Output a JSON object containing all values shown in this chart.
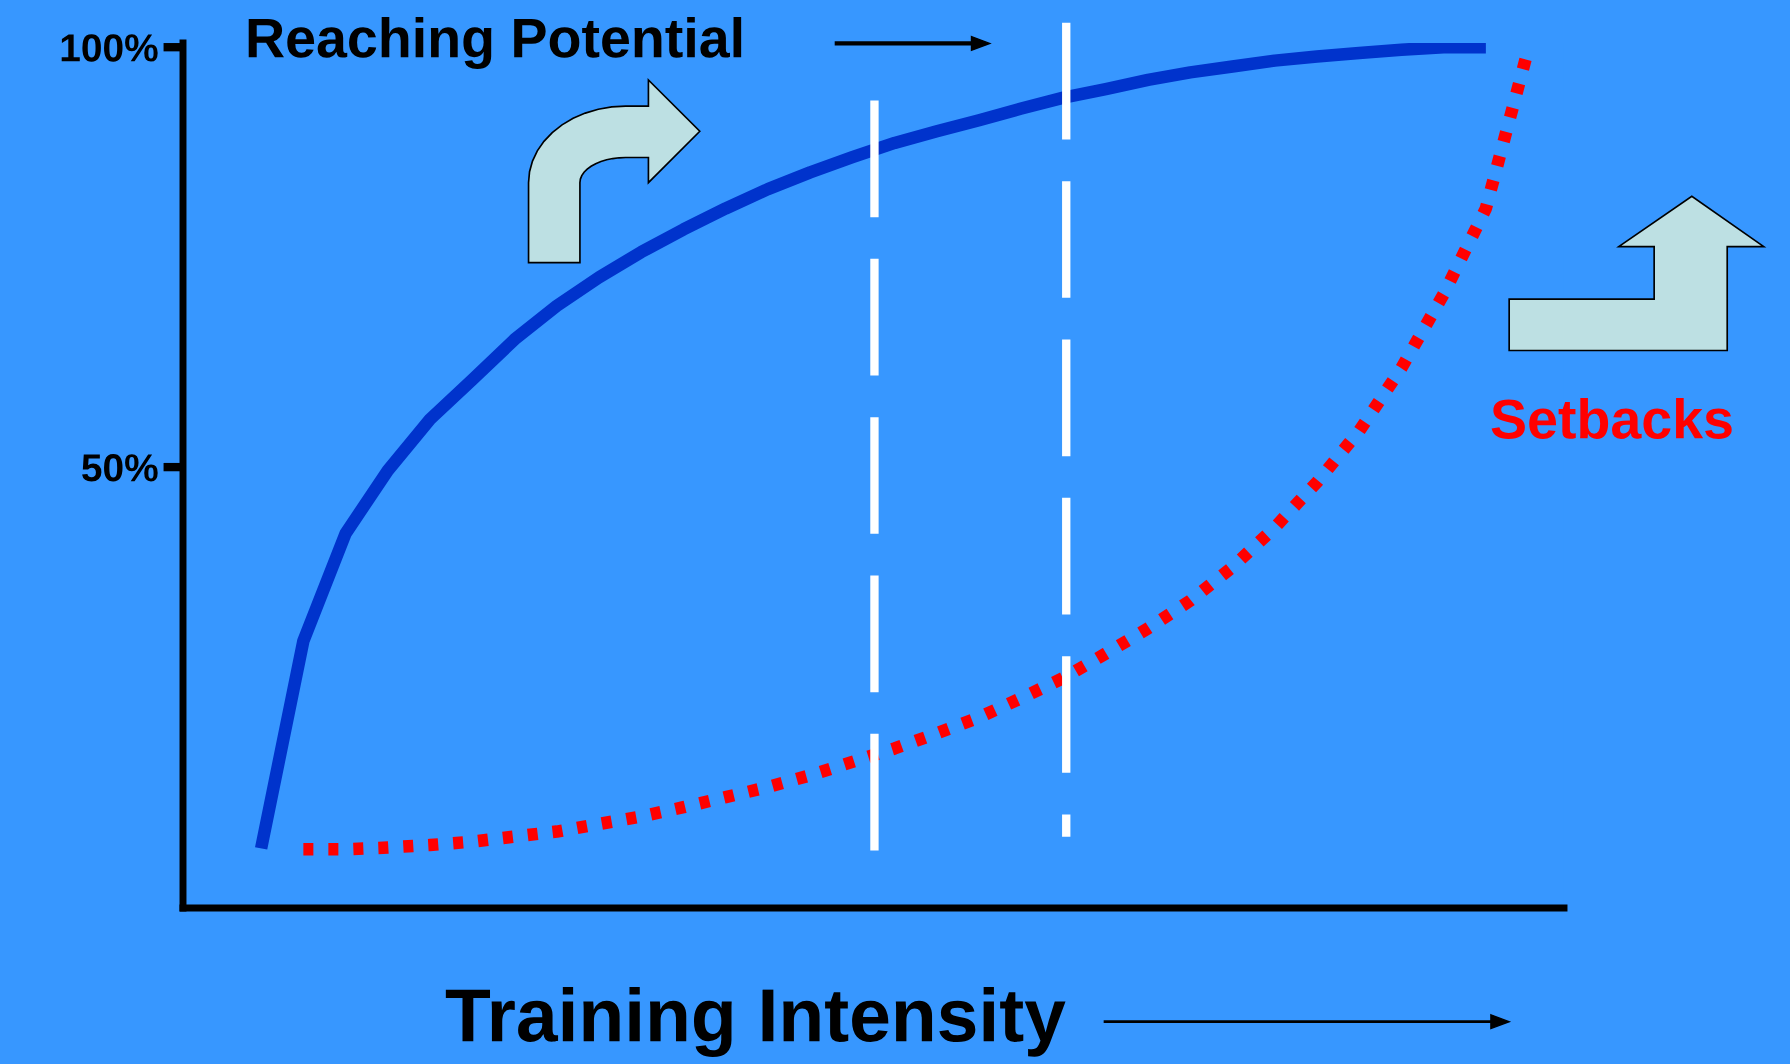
{
  "chart_data": {
    "type": "line",
    "xlabel": "Training Intensity",
    "categories": [
      null,
      null,
      null,
      null,
      null,
      null,
      null,
      null,
      null,
      null,
      null,
      null,
      null,
      null,
      null,
      null,
      null,
      null,
      null,
      null,
      null,
      null,
      null,
      null,
      null,
      null,
      null,
      null,
      null,
      null,
      null
    ],
    "series": [
      {
        "name": "Reaching Potential",
        "color": "#0033cc",
        "line_style": "solid",
        "values": [
          4.6,
          29.3,
          42.1,
          49.6,
          55.7,
          60.4,
          65.2,
          69.2,
          72.6,
          75.6,
          78.3,
          80.8,
          83.1,
          85.1,
          86.9,
          88.6,
          90.0,
          91.3,
          92.7,
          94.0,
          95.0,
          96.1,
          97.0,
          97.7,
          98.4,
          98.9,
          99.3,
          99.7,
          100,
          100,
          null
        ]
      },
      {
        "name": "Setbacks",
        "color": "#ff0000",
        "line_style": "dotted",
        "values": [
          null,
          4.5,
          4.5,
          4.7,
          5.0,
          5.4,
          6.0,
          6.6,
          7.5,
          8.4,
          9.5,
          10.7,
          11.9,
          13.3,
          14.9,
          16.5,
          18.3,
          20.2,
          22.5,
          24.9,
          27.8,
          30.8,
          34.1,
          38.1,
          42.8,
          48.2,
          54.3,
          61.8,
          70.6,
          80.8,
          99.7
        ]
      }
    ],
    "ylim": [
      -2.5,
      100.5
    ],
    "yticks": [
      {
        "value": 50,
        "label": "50%"
      },
      {
        "value": 100,
        "label": "100%"
      }
    ],
    "tick_labels": "y",
    "grid": false,
    "legend": false,
    "marker": "none"
  }
}
